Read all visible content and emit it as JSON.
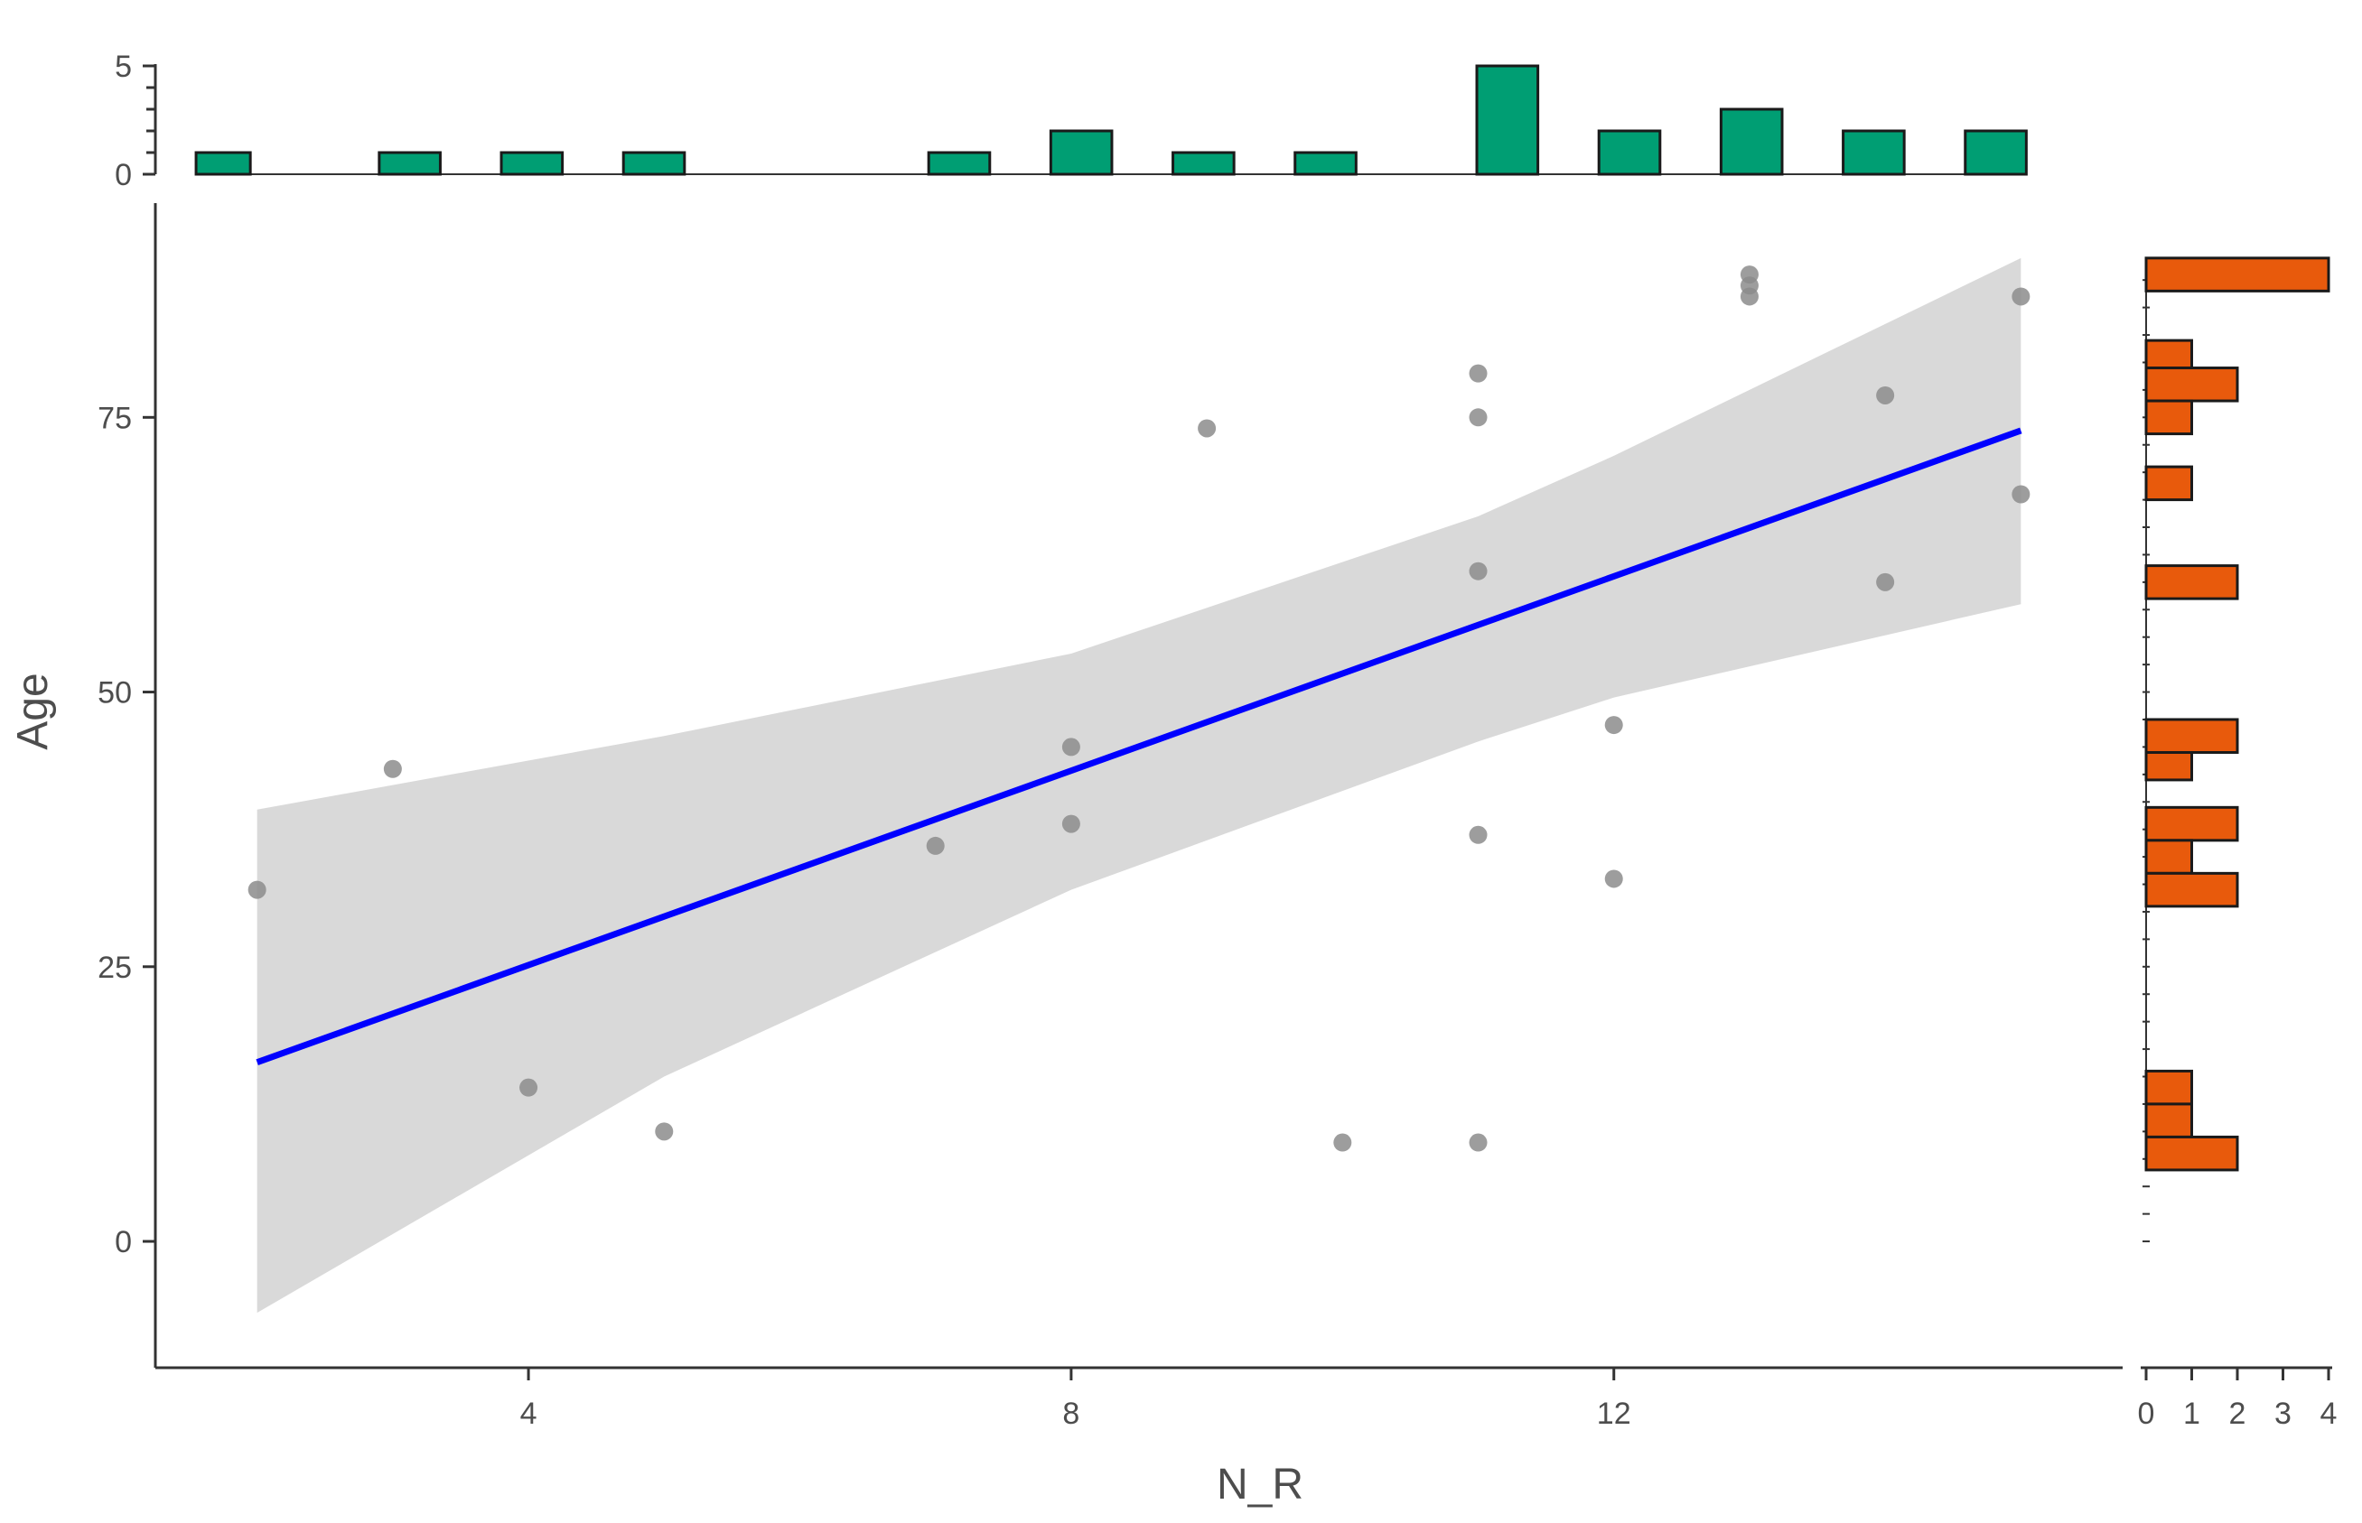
{
  "chart_data": {
    "type": "scatter",
    "xlabel": "N_R",
    "ylabel": "Age",
    "xlim": [
      1.25,
      15.75
    ],
    "ylim": [
      -11.5,
      94.5
    ],
    "x_ticks": [
      "4",
      "8",
      "12"
    ],
    "y_ticks": [
      "0",
      "25",
      "50",
      "75"
    ],
    "colors": {
      "points": "#8c8c8c",
      "fit_line": "#0000ff",
      "confidence_band": "#d9d9d9",
      "top_histogram": "#009e73",
      "right_histogram": "#e85a0c"
    },
    "points": [
      {
        "x": 2,
        "y": 32
      },
      {
        "x": 3,
        "y": 43
      },
      {
        "x": 4,
        "y": 14
      },
      {
        "x": 5,
        "y": 10
      },
      {
        "x": 7,
        "y": 36
      },
      {
        "x": 8,
        "y": 45
      },
      {
        "x": 8,
        "y": 38
      },
      {
        "x": 9,
        "y": 74
      },
      {
        "x": 10,
        "y": 9
      },
      {
        "x": 11,
        "y": 79
      },
      {
        "x": 11,
        "y": 75
      },
      {
        "x": 11,
        "y": 61
      },
      {
        "x": 11,
        "y": 37
      },
      {
        "x": 11,
        "y": 9
      },
      {
        "x": 12,
        "y": 47
      },
      {
        "x": 12,
        "y": 33
      },
      {
        "x": 13,
        "y": 88
      },
      {
        "x": 13,
        "y": 87
      },
      {
        "x": 13,
        "y": 86
      },
      {
        "x": 14,
        "y": 77
      },
      {
        "x": 14,
        "y": 60
      },
      {
        "x": 15,
        "y": 86
      },
      {
        "x": 15,
        "y": 68
      }
    ],
    "fit": {
      "x": [
        2,
        5,
        8,
        11,
        12,
        15
      ],
      "y": [
        16.3,
        29.4,
        42.6,
        55.7,
        60.1,
        73.8
      ],
      "lower": [
        -6.5,
        15,
        32,
        45.5,
        49.5,
        58
      ],
      "upper": [
        39.3,
        46,
        53.5,
        66,
        71.5,
        89.5
      ]
    },
    "top_histogram": {
      "ylim": [
        0,
        5
      ],
      "y_ticks": [
        "0",
        "5"
      ],
      "bins": [
        {
          "from": 1.55,
          "to": 1.95,
          "count": 1
        },
        {
          "from": 2.9,
          "to": 3.35,
          "count": 1
        },
        {
          "from": 3.8,
          "to": 4.25,
          "count": 1
        },
        {
          "from": 4.7,
          "to": 5.15,
          "count": 1
        },
        {
          "from": 6.95,
          "to": 7.4,
          "count": 1
        },
        {
          "from": 7.85,
          "to": 8.3,
          "count": 2
        },
        {
          "from": 8.75,
          "to": 9.2,
          "count": 1
        },
        {
          "from": 9.65,
          "to": 10.1,
          "count": 1
        },
        {
          "from": 10.99,
          "to": 11.44,
          "count": 5
        },
        {
          "from": 11.89,
          "to": 12.34,
          "count": 2
        },
        {
          "from": 12.79,
          "to": 13.24,
          "count": 3
        },
        {
          "from": 13.69,
          "to": 14.14,
          "count": 2
        },
        {
          "from": 14.59,
          "to": 15.04,
          "count": 2
        }
      ]
    },
    "right_histogram": {
      "xlim": [
        0,
        4
      ],
      "x_ticks": [
        "0",
        "1",
        "2",
        "3",
        "4"
      ],
      "bins": [
        {
          "from": 86.5,
          "to": 89.5,
          "count": 4
        },
        {
          "from": 79.5,
          "to": 82,
          "count": 1
        },
        {
          "from": 76.5,
          "to": 79.5,
          "count": 2
        },
        {
          "from": 73.5,
          "to": 76.5,
          "count": 1
        },
        {
          "from": 67.5,
          "to": 70.5,
          "count": 1
        },
        {
          "from": 58.5,
          "to": 61.5,
          "count": 2
        },
        {
          "from": 44.5,
          "to": 47.5,
          "count": 2
        },
        {
          "from": 42,
          "to": 44.5,
          "count": 1
        },
        {
          "from": 36.5,
          "to": 39.5,
          "count": 2
        },
        {
          "from": 33.5,
          "to": 36.5,
          "count": 1
        },
        {
          "from": 30.5,
          "to": 33.5,
          "count": 2
        },
        {
          "from": 12.5,
          "to": 15.5,
          "count": 1
        },
        {
          "from": 9.5,
          "to": 12.5,
          "count": 1
        },
        {
          "from": 6.5,
          "to": 9.5,
          "count": 2
        }
      ]
    }
  }
}
